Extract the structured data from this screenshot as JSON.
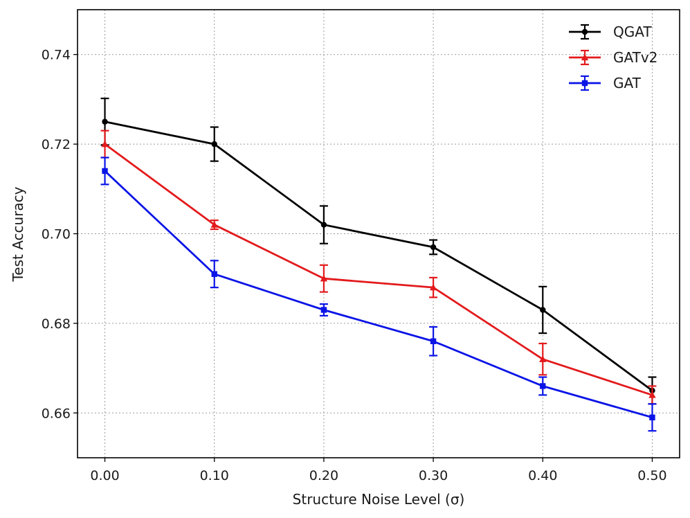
{
  "chart_data": {
    "type": "line",
    "title": "",
    "xlabel": "Structure Noise Level (σ)",
    "ylabel": "Test Accuracy",
    "x": [
      0.0,
      0.1,
      0.2,
      0.3,
      0.4,
      0.5
    ],
    "x_tick_labels": [
      "0.00",
      "0.10",
      "0.20",
      "0.30",
      "0.40",
      "0.50"
    ],
    "y_tick_values": [
      0.66,
      0.68,
      0.7,
      0.72,
      0.74
    ],
    "y_tick_labels": [
      "0.66",
      "0.68",
      "0.70",
      "0.72",
      "0.74"
    ],
    "xlim": [
      -0.025,
      0.525
    ],
    "ylim": [
      0.65,
      0.75
    ],
    "grid": true,
    "legend_position": "top-right",
    "series": [
      {
        "name": "QGAT",
        "color": "#000000",
        "marker": "circle",
        "values": [
          0.725,
          0.72,
          0.702,
          0.697,
          0.683,
          0.665
        ],
        "errors": [
          0.0052,
          0.0038,
          0.0042,
          0.0016,
          0.0052,
          0.003
        ]
      },
      {
        "name": "GATv2",
        "color": "#e31a1c",
        "marker": "triangle",
        "values": [
          0.72,
          0.702,
          0.69,
          0.688,
          0.672,
          0.664
        ],
        "errors": [
          0.003,
          0.001,
          0.003,
          0.0022,
          0.0035,
          0.002
        ]
      },
      {
        "name": "GAT",
        "color": "#0a14e6",
        "marker": "square",
        "values": [
          0.714,
          0.691,
          0.683,
          0.676,
          0.666,
          0.659
        ],
        "errors": [
          0.003,
          0.003,
          0.0013,
          0.0032,
          0.002,
          0.003
        ]
      }
    ]
  }
}
